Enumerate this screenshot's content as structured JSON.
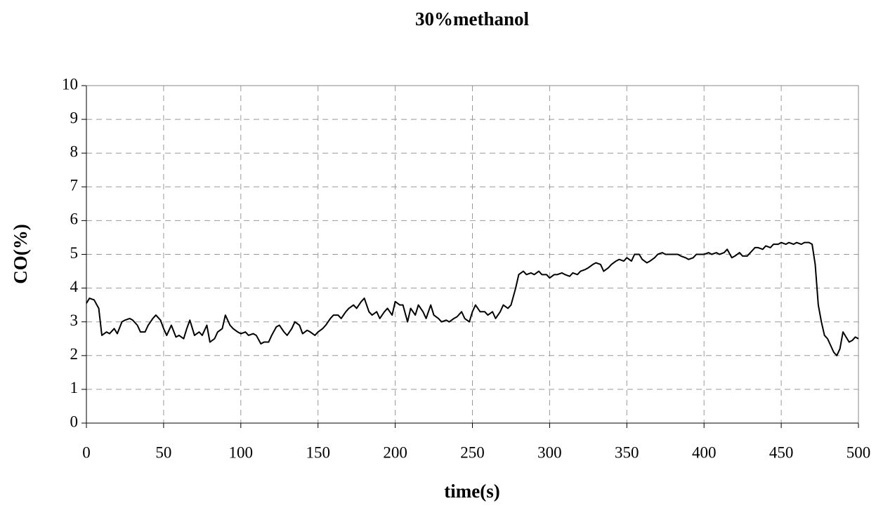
{
  "chart_data": {
    "type": "line",
    "title": "30%methanol",
    "x_label": "time(s)",
    "y_label": "CO(%)",
    "xlim": [
      0,
      500
    ],
    "ylim": [
      0,
      10
    ],
    "xticks": [
      0,
      50,
      100,
      150,
      200,
      250,
      300,
      350,
      400,
      450,
      500
    ],
    "yticks": [
      0,
      1,
      2,
      3,
      4,
      5,
      6,
      7,
      8,
      9,
      10
    ],
    "grid": true,
    "series": [
      {
        "name": "CO",
        "color": "#000000",
        "x": [
          0,
          2,
          5,
          8,
          10,
          13,
          15,
          18,
          20,
          23,
          25,
          28,
          30,
          33,
          35,
          38,
          40,
          43,
          45,
          48,
          50,
          52,
          55,
          58,
          60,
          63,
          65,
          67,
          70,
          73,
          75,
          78,
          80,
          83,
          85,
          88,
          90,
          93,
          95,
          98,
          100,
          103,
          105,
          108,
          110,
          113,
          115,
          118,
          120,
          123,
          125,
          128,
          130,
          133,
          135,
          138,
          140,
          143,
          145,
          148,
          150,
          153,
          155,
          158,
          160,
          163,
          165,
          168,
          170,
          173,
          175,
          178,
          180,
          183,
          185,
          188,
          190,
          193,
          195,
          198,
          200,
          203,
          205,
          208,
          210,
          213,
          215,
          218,
          220,
          223,
          225,
          228,
          230,
          233,
          235,
          238,
          240,
          243,
          245,
          248,
          250,
          252,
          255,
          258,
          260,
          263,
          265,
          268,
          270,
          273,
          275,
          278,
          280,
          283,
          285,
          288,
          290,
          293,
          295,
          298,
          300,
          303,
          305,
          308,
          310,
          313,
          315,
          318,
          320,
          323,
          325,
          328,
          330,
          333,
          335,
          338,
          340,
          343,
          345,
          348,
          350,
          353,
          355,
          358,
          360,
          363,
          365,
          368,
          370,
          373,
          375,
          378,
          380,
          383,
          385,
          388,
          390,
          393,
          395,
          398,
          400,
          403,
          405,
          408,
          410,
          413,
          415,
          418,
          420,
          423,
          425,
          428,
          430,
          433,
          435,
          438,
          440,
          443,
          445,
          448,
          450,
          453,
          455,
          458,
          460,
          463,
          465,
          468,
          470,
          472,
          474,
          476,
          478,
          480,
          482,
          484,
          486,
          488,
          490,
          492,
          494,
          496,
          498,
          500
        ],
        "values": [
          3.55,
          3.7,
          3.65,
          3.4,
          2.6,
          2.7,
          2.65,
          2.8,
          2.65,
          3.0,
          3.05,
          3.1,
          3.05,
          2.9,
          2.7,
          2.7,
          2.9,
          3.1,
          3.2,
          3.05,
          2.8,
          2.6,
          2.9,
          2.55,
          2.6,
          2.5,
          2.8,
          3.05,
          2.6,
          2.7,
          2.6,
          2.9,
          2.4,
          2.5,
          2.7,
          2.8,
          3.2,
          2.9,
          2.8,
          2.7,
          2.65,
          2.7,
          2.6,
          2.65,
          2.6,
          2.35,
          2.4,
          2.4,
          2.6,
          2.85,
          2.9,
          2.7,
          2.6,
          2.8,
          3.0,
          2.9,
          2.65,
          2.75,
          2.7,
          2.6,
          2.7,
          2.8,
          2.9,
          3.1,
          3.2,
          3.2,
          3.1,
          3.3,
          3.4,
          3.5,
          3.4,
          3.6,
          3.7,
          3.3,
          3.2,
          3.3,
          3.1,
          3.3,
          3.4,
          3.2,
          3.6,
          3.5,
          3.5,
          3.0,
          3.4,
          3.2,
          3.5,
          3.3,
          3.1,
          3.5,
          3.2,
          3.1,
          3.0,
          3.05,
          3.0,
          3.1,
          3.15,
          3.3,
          3.1,
          3.0,
          3.3,
          3.5,
          3.3,
          3.3,
          3.2,
          3.3,
          3.1,
          3.3,
          3.5,
          3.4,
          3.5,
          4.0,
          4.4,
          4.5,
          4.4,
          4.45,
          4.4,
          4.5,
          4.4,
          4.4,
          4.3,
          4.4,
          4.4,
          4.45,
          4.4,
          4.35,
          4.45,
          4.4,
          4.5,
          4.55,
          4.6,
          4.7,
          4.75,
          4.7,
          4.5,
          4.6,
          4.7,
          4.8,
          4.85,
          4.8,
          4.9,
          4.8,
          5.0,
          5.0,
          4.85,
          4.75,
          4.8,
          4.9,
          5.0,
          5.05,
          5.0,
          5.0,
          5.0,
          5.0,
          4.95,
          4.9,
          4.85,
          4.9,
          5.0,
          5.0,
          5.0,
          5.05,
          5.0,
          5.05,
          5.0,
          5.05,
          5.15,
          4.9,
          4.95,
          5.05,
          4.95,
          4.95,
          5.05,
          5.2,
          5.2,
          5.15,
          5.25,
          5.2,
          5.3,
          5.3,
          5.35,
          5.3,
          5.35,
          5.3,
          5.35,
          5.3,
          5.35,
          5.35,
          5.3,
          4.7,
          3.5,
          3.0,
          2.6,
          2.5,
          2.3,
          2.1,
          2.0,
          2.2,
          2.7,
          2.55,
          2.4,
          2.45,
          2.55,
          2.5
        ]
      }
    ]
  }
}
